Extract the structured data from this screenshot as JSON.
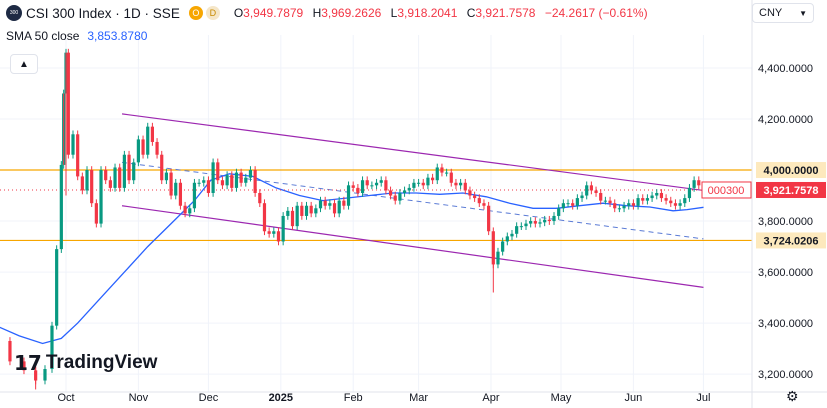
{
  "header": {
    "symbol_icon": "300",
    "title": "CSI 300 Index · 1D · SSE",
    "badge_o": "O",
    "badge_d": "D",
    "ohlc": {
      "o_label": "O",
      "o_value": "3,949.7879",
      "h_label": "H",
      "h_value": "3,969.2626",
      "l_label": "L",
      "l_value": "3,918.2041",
      "c_label": "C",
      "c_value": "3,921.7578",
      "change": "−24.2617 (−0.61%)"
    },
    "sma_label": "SMA 50 close",
    "sma_value": "3,853.8780"
  },
  "controls": {
    "currency": "CNY",
    "collapse_icon": "chevron-up-icon",
    "settings_icon": "gear-icon"
  },
  "logo": {
    "mark": "17",
    "text": "TradingView"
  },
  "colors": {
    "up": "#089981",
    "down": "#f23645",
    "sma": "#2962ff",
    "channel": "#9c27b0",
    "horizontal": "#f7a600",
    "price_tag": "#f23645",
    "level_tag": "#fde9bd"
  },
  "chart_data": {
    "type": "candlestick",
    "y_axis": {
      "min": 3130,
      "max": 4490,
      "ticks": [
        4400,
        4200,
        4000,
        3800,
        3600,
        3400,
        3200
      ],
      "tick_labels": [
        "4,400.0000",
        "4,200.0000",
        "4,000.0000",
        "3,800.0000",
        "3,600.0000",
        "3,400.0000",
        "3,200.0000"
      ]
    },
    "x_axis": {
      "labels": [
        {
          "label": "Oct",
          "day": 0
        },
        {
          "label": "Nov",
          "day": 31
        },
        {
          "label": "Dec",
          "day": 61
        },
        {
          "label": "2025",
          "day": 92
        },
        {
          "label": "Feb",
          "day": 123
        },
        {
          "label": "Mar",
          "day": 151
        },
        {
          "label": "Apr",
          "day": 182
        },
        {
          "label": "May",
          "day": 212
        },
        {
          "label": "Jun",
          "day": 243
        },
        {
          "label": "Jul",
          "day": 273
        }
      ]
    },
    "price_series": [
      [
        -30,
        3330
      ],
      [
        -24,
        3250
      ],
      [
        -18,
        3215
      ],
      [
        -13,
        3175
      ],
      [
        -9,
        3220
      ],
      [
        -6,
        3390
      ],
      [
        -4,
        3690
      ],
      [
        -2,
        4020
      ],
      [
        -1,
        4300
      ],
      [
        0,
        4460
      ],
      [
        1,
        4060
      ],
      [
        3,
        4140
      ],
      [
        5,
        3975
      ],
      [
        7,
        3920
      ],
      [
        9,
        4000
      ],
      [
        11,
        3870
      ],
      [
        13,
        3790
      ],
      [
        15,
        4000
      ],
      [
        17,
        3960
      ],
      [
        19,
        3930
      ],
      [
        21,
        4010
      ],
      [
        23,
        3930
      ],
      [
        25,
        4060
      ],
      [
        27,
        3960
      ],
      [
        29,
        4030
      ],
      [
        31,
        4120
      ],
      [
        33,
        4060
      ],
      [
        35,
        4170
      ],
      [
        37,
        4110
      ],
      [
        39,
        4060
      ],
      [
        41,
        3960
      ],
      [
        43,
        3990
      ],
      [
        45,
        3900
      ],
      [
        47,
        3950
      ],
      [
        49,
        3860
      ],
      [
        51,
        3830
      ],
      [
        53,
        3850
      ],
      [
        55,
        3950
      ],
      [
        57,
        3950
      ],
      [
        59,
        3960
      ],
      [
        61,
        3910
      ],
      [
        63,
        4030
      ],
      [
        65,
        3960
      ],
      [
        67,
        3940
      ],
      [
        69,
        3980
      ],
      [
        71,
        3930
      ],
      [
        73,
        3990
      ],
      [
        75,
        3950
      ],
      [
        77,
        3970
      ],
      [
        79,
        4000
      ],
      [
        81,
        3910
      ],
      [
        83,
        3870
      ],
      [
        85,
        3760
      ],
      [
        87,
        3750
      ],
      [
        89,
        3760
      ],
      [
        91,
        3720
      ],
      [
        93,
        3820
      ],
      [
        95,
        3840
      ],
      [
        97,
        3780
      ],
      [
        99,
        3860
      ],
      [
        101,
        3820
      ],
      [
        103,
        3860
      ],
      [
        105,
        3830
      ],
      [
        107,
        3850
      ],
      [
        109,
        3880
      ],
      [
        111,
        3860
      ],
      [
        113,
        3870
      ],
      [
        115,
        3830
      ],
      [
        117,
        3880
      ],
      [
        119,
        3860
      ],
      [
        121,
        3940
      ],
      [
        123,
        3930
      ],
      [
        125,
        3910
      ],
      [
        127,
        3960
      ],
      [
        129,
        3940
      ],
      [
        131,
        3940
      ],
      [
        133,
        3950
      ],
      [
        135,
        3960
      ],
      [
        137,
        3920
      ],
      [
        139,
        3900
      ],
      [
        141,
        3880
      ],
      [
        143,
        3910
      ],
      [
        145,
        3920
      ],
      [
        147,
        3930
      ],
      [
        149,
        3950
      ],
      [
        151,
        3950
      ],
      [
        153,
        3940
      ],
      [
        155,
        3970
      ],
      [
        157,
        3960
      ],
      [
        159,
        4010
      ],
      [
        161,
        3990
      ],
      [
        163,
        3990
      ],
      [
        165,
        3950
      ],
      [
        167,
        3940
      ],
      [
        169,
        3950
      ],
      [
        171,
        3920
      ],
      [
        173,
        3900
      ],
      [
        175,
        3890
      ],
      [
        177,
        3870
      ],
      [
        179,
        3860
      ],
      [
        181,
        3760
      ],
      [
        183,
        3630
      ],
      [
        185,
        3680
      ],
      [
        187,
        3720
      ],
      [
        189,
        3740
      ],
      [
        191,
        3750
      ],
      [
        193,
        3780
      ],
      [
        195,
        3780
      ],
      [
        197,
        3790
      ],
      [
        199,
        3800
      ],
      [
        201,
        3790
      ],
      [
        203,
        3795
      ],
      [
        205,
        3805
      ],
      [
        207,
        3800
      ],
      [
        209,
        3820
      ],
      [
        211,
        3850
      ],
      [
        213,
        3870
      ],
      [
        215,
        3870
      ],
      [
        217,
        3860
      ],
      [
        219,
        3890
      ],
      [
        221,
        3900
      ],
      [
        223,
        3940
      ],
      [
        225,
        3920
      ],
      [
        227,
        3910
      ],
      [
        229,
        3880
      ],
      [
        231,
        3880
      ],
      [
        233,
        3870
      ],
      [
        235,
        3850
      ],
      [
        237,
        3850
      ],
      [
        239,
        3860
      ],
      [
        241,
        3870
      ],
      [
        243,
        3860
      ],
      [
        245,
        3890
      ],
      [
        247,
        3880
      ],
      [
        249,
        3890
      ],
      [
        251,
        3900
      ],
      [
        253,
        3910
      ],
      [
        255,
        3890
      ],
      [
        257,
        3880
      ],
      [
        259,
        3870
      ],
      [
        261,
        3860
      ],
      [
        263,
        3870
      ],
      [
        265,
        3890
      ],
      [
        267,
        3930
      ],
      [
        269,
        3960
      ],
      [
        271,
        3940
      ],
      [
        273,
        3922
      ]
    ],
    "spikes": [
      {
        "day": 0,
        "low": 3900,
        "high": 4460
      },
      {
        "day": -1,
        "low": 4020,
        "high": 4300
      },
      {
        "day": 183,
        "low": 3520,
        "high": 3690
      },
      {
        "day": -13,
        "low": 3140,
        "high": 3230
      }
    ],
    "sma_50": [
      [
        -30,
        3390
      ],
      [
        -20,
        3350
      ],
      [
        -10,
        3320
      ],
      [
        -2,
        3340
      ],
      [
        5,
        3400
      ],
      [
        15,
        3500
      ],
      [
        25,
        3600
      ],
      [
        35,
        3700
      ],
      [
        45,
        3790
      ],
      [
        55,
        3880
      ],
      [
        62,
        3960
      ],
      [
        70,
        3985
      ],
      [
        80,
        3975
      ],
      [
        90,
        3930
      ],
      [
        100,
        3900
      ],
      [
        110,
        3880
      ],
      [
        120,
        3890
      ],
      [
        130,
        3900
      ],
      [
        140,
        3910
      ],
      [
        150,
        3910
      ],
      [
        160,
        3905
      ],
      [
        170,
        3910
      ],
      [
        180,
        3895
      ],
      [
        190,
        3870
      ],
      [
        200,
        3850
      ],
      [
        210,
        3850
      ],
      [
        220,
        3860
      ],
      [
        230,
        3870
      ],
      [
        240,
        3860
      ],
      [
        250,
        3855
      ],
      [
        260,
        3840
      ],
      [
        266,
        3845
      ],
      [
        273,
        3854
      ]
    ],
    "channel_upper": {
      "start": [
        24,
        4220
      ],
      "end": [
        273,
        3920
      ]
    },
    "channel_lower": {
      "start": [
        24,
        3860
      ],
      "end": [
        273,
        3540
      ]
    },
    "dashed_mid": {
      "start": [
        24,
        4030
      ],
      "end": [
        273,
        3730
      ]
    },
    "horizontal_levels": [
      {
        "value": 4000,
        "label": "4,000.0000"
      },
      {
        "value": 3724.0206,
        "label": "3,724.0206"
      }
    ],
    "last_price": {
      "value": 3921.7578,
      "label": "3,921.7578",
      "symbol": "000300"
    }
  }
}
